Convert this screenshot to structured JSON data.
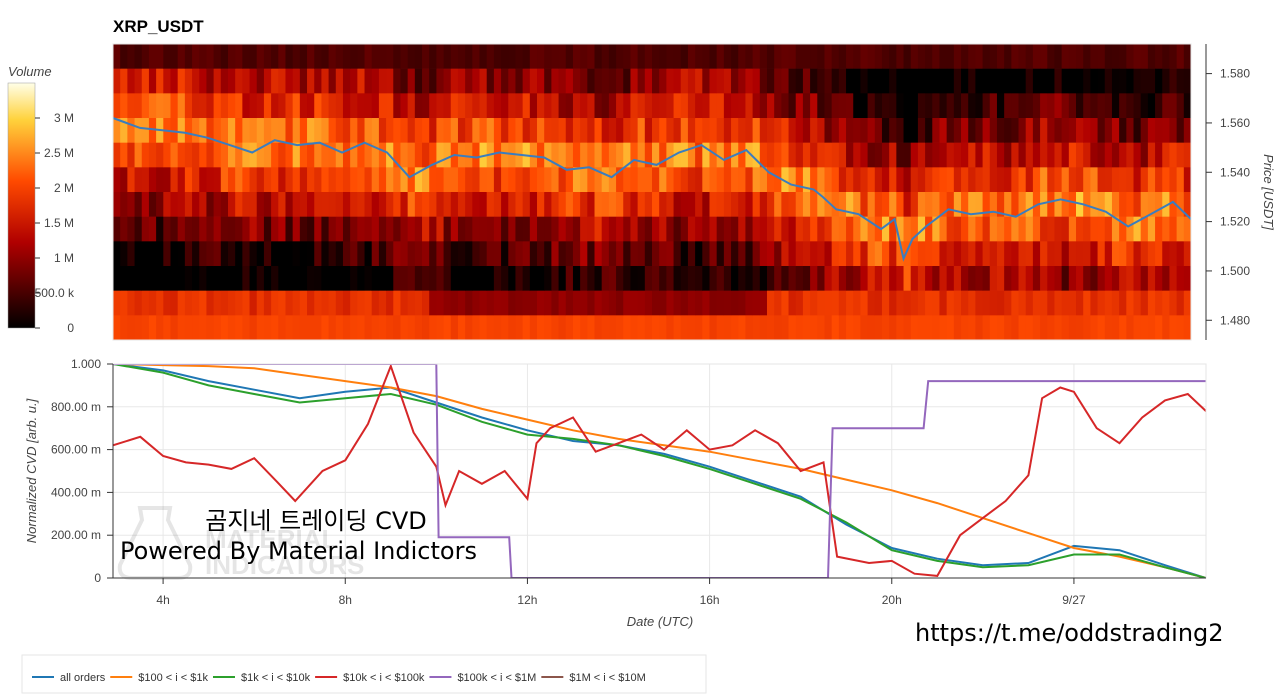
{
  "chart_data": [
    {
      "type": "heatmap",
      "title": "XRP_USDT",
      "ylabel": "Price [USDT]",
      "ylim": [
        1.472,
        1.592
      ],
      "price_ticks": [
        "1.480",
        "1.500",
        "1.520",
        "1.540",
        "1.560",
        "1.580"
      ],
      "price_tick_values": [
        1.48,
        1.5,
        1.52,
        1.54,
        1.56,
        1.58
      ],
      "colorbar": {
        "label": "Volume",
        "range": [
          0,
          3500000
        ],
        "ticks": [
          "0",
          "500.0 k",
          "1 M",
          "1.5 M",
          "2 M",
          "2.5 M",
          "3 M"
        ],
        "tick_values": [
          0,
          500000,
          1000000,
          1500000,
          2000000,
          2500000,
          3000000
        ]
      },
      "price_series": {
        "name": "price",
        "color": "#3a7dbf",
        "x_hours": [
          2.9,
          3.5,
          4,
          4.5,
          5,
          5.5,
          6,
          6.5,
          7,
          7.5,
          8,
          8.5,
          9,
          9.5,
          10,
          10.5,
          11,
          11.5,
          12,
          12.5,
          13,
          13.5,
          14,
          14.5,
          15,
          15.5,
          16,
          16.5,
          17,
          17.5,
          18,
          18.5,
          18.7,
          19,
          19.5,
          20,
          20.3,
          20.5,
          20.7,
          21,
          21.5,
          22,
          22.5,
          23,
          23.5,
          24,
          24.5,
          25,
          25.5,
          26,
          26.5,
          26.9
        ],
        "y_price": [
          1.562,
          1.558,
          1.557,
          1.556,
          1.554,
          1.551,
          1.548,
          1.553,
          1.551,
          1.552,
          1.548,
          1.552,
          1.548,
          1.538,
          1.543,
          1.547,
          1.546,
          1.548,
          1.547,
          1.546,
          1.541,
          1.542,
          1.538,
          1.545,
          1.543,
          1.548,
          1.551,
          1.545,
          1.549,
          1.54,
          1.535,
          1.533,
          1.53,
          1.525,
          1.523,
          1.517,
          1.521,
          1.505,
          1.513,
          1.518,
          1.525,
          1.523,
          1.524,
          1.522,
          1.527,
          1.529,
          1.527,
          1.524,
          1.518,
          1.523,
          1.528,
          1.521
        ]
      }
    },
    {
      "type": "line",
      "xlabel": "Date (UTC)",
      "ylabel": "Normalized CVD [arb. u.]",
      "xlim_hours": [
        2.9,
        26.9
      ],
      "ylim": [
        0,
        1.0
      ],
      "x_ticks": [
        "4h",
        "8h",
        "12h",
        "16h",
        "20h",
        "9/27"
      ],
      "x_tick_hours": [
        4,
        8,
        12,
        16,
        20,
        24
      ],
      "y_ticks": [
        "0",
        "200.00 m",
        "400.00 m",
        "600.00 m",
        "800.00 m",
        "1.000"
      ],
      "y_tick_values": [
        0,
        0.2,
        0.4,
        0.6,
        0.8,
        1.0
      ],
      "series": [
        {
          "name": "all orders",
          "color": "#1f77b4",
          "x": [
            2.9,
            4,
            5,
            6,
            7,
            8,
            9,
            10,
            11,
            12,
            13,
            14,
            15,
            16,
            17,
            18,
            19,
            20,
            21,
            22,
            23,
            24,
            25,
            26,
            26.9
          ],
          "y": [
            1.0,
            0.97,
            0.92,
            0.88,
            0.84,
            0.87,
            0.89,
            0.82,
            0.75,
            0.69,
            0.64,
            0.62,
            0.58,
            0.52,
            0.45,
            0.38,
            0.25,
            0.14,
            0.09,
            0.06,
            0.07,
            0.15,
            0.13,
            0.06,
            0.0
          ]
        },
        {
          "name": "$100 < i < $1k",
          "color": "#ff7f0e",
          "x": [
            2.9,
            4,
            5,
            6,
            7,
            8,
            9,
            10,
            11,
            12,
            13,
            14,
            15,
            16,
            17,
            18,
            19,
            20,
            21,
            22,
            23,
            24,
            25,
            26,
            26.9
          ],
          "y": [
            1.0,
            0.995,
            0.99,
            0.98,
            0.95,
            0.92,
            0.89,
            0.85,
            0.79,
            0.74,
            0.69,
            0.65,
            0.62,
            0.59,
            0.55,
            0.51,
            0.46,
            0.41,
            0.35,
            0.28,
            0.21,
            0.14,
            0.1,
            0.05,
            0.0
          ]
        },
        {
          "name": "$1k < i < $10k",
          "color": "#2ca02c",
          "x": [
            2.9,
            4,
            5,
            6,
            7,
            8,
            9,
            10,
            11,
            12,
            13,
            14,
            15,
            16,
            17,
            18,
            19,
            20,
            21,
            22,
            23,
            24,
            25,
            26,
            26.9
          ],
          "y": [
            1.0,
            0.96,
            0.9,
            0.86,
            0.82,
            0.84,
            0.86,
            0.81,
            0.73,
            0.67,
            0.65,
            0.62,
            0.57,
            0.51,
            0.44,
            0.37,
            0.26,
            0.13,
            0.08,
            0.05,
            0.06,
            0.11,
            0.11,
            0.05,
            0.0
          ]
        },
        {
          "name": "$10k < i < $100k",
          "color": "#d62728",
          "x": [
            2.9,
            3.5,
            4,
            4.5,
            5,
            5.5,
            6,
            6.5,
            6.9,
            7.5,
            8,
            8.5,
            9,
            9.5,
            10,
            10.2,
            10.5,
            11,
            11.5,
            12,
            12.2,
            12.5,
            13,
            13.5,
            14,
            14.5,
            15,
            15.5,
            16,
            16.5,
            17,
            17.5,
            18,
            18.5,
            18.8,
            19.5,
            20,
            20.5,
            21,
            21.5,
            22,
            22.5,
            23,
            23.3,
            23.7,
            24,
            24.5,
            25,
            25.5,
            26,
            26.5,
            26.9
          ],
          "y": [
            0.62,
            0.66,
            0.57,
            0.54,
            0.53,
            0.51,
            0.56,
            0.45,
            0.36,
            0.5,
            0.55,
            0.72,
            0.99,
            0.68,
            0.52,
            0.34,
            0.5,
            0.44,
            0.5,
            0.37,
            0.63,
            0.7,
            0.75,
            0.59,
            0.63,
            0.67,
            0.6,
            0.69,
            0.6,
            0.62,
            0.69,
            0.63,
            0.5,
            0.54,
            0.1,
            0.07,
            0.08,
            0.02,
            0.01,
            0.2,
            0.28,
            0.36,
            0.48,
            0.84,
            0.89,
            0.87,
            0.7,
            0.63,
            0.75,
            0.83,
            0.86,
            0.78
          ]
        },
        {
          "name": "$100k < i < $1M",
          "color": "#9467bd",
          "x": [
            2.9,
            10.0,
            10.05,
            11.6,
            11.65,
            18.6,
            18.7,
            20.7,
            20.8,
            26.9
          ],
          "y": [
            1.0,
            1.0,
            0.19,
            0.19,
            0.0,
            0.0,
            0.7,
            0.7,
            0.92,
            0.92
          ]
        },
        {
          "name": "$1M < i < $10M",
          "color": "#8c564b",
          "x": [],
          "y": []
        }
      ]
    }
  ],
  "watermark": {
    "line1": "곰지네 트레이딩 CVD",
    "line2": "Powered By Material Indictors"
  },
  "url_text": "https://t.me/oddstrading2"
}
